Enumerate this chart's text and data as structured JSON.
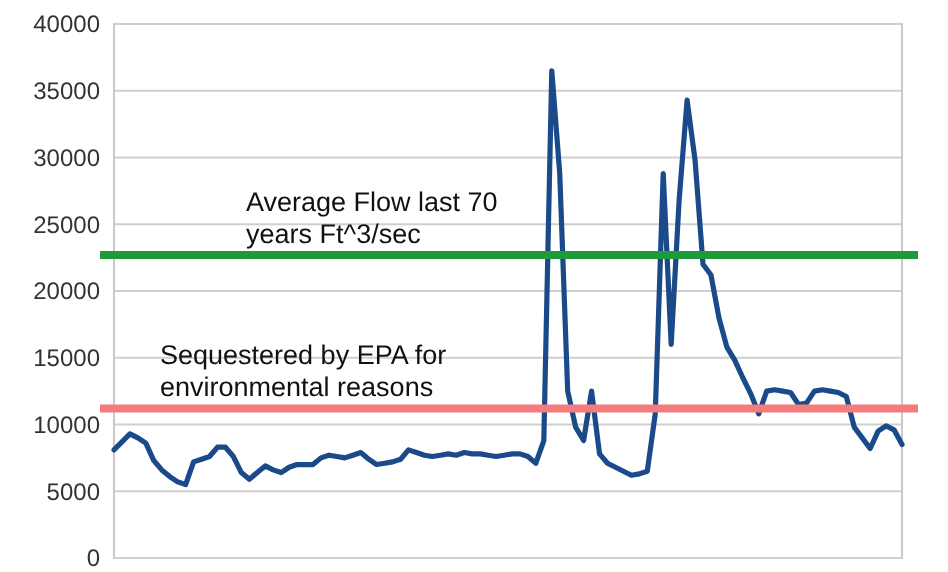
{
  "chart_data": {
    "type": "line",
    "categories": [
      null,
      null,
      null,
      null,
      null,
      null,
      null,
      null,
      null,
      null,
      null,
      null,
      null,
      null,
      null,
      null,
      null,
      null,
      null,
      null,
      null,
      null,
      null,
      null,
      null,
      null,
      null,
      null,
      null,
      null,
      null,
      null,
      null,
      null,
      null,
      null,
      null,
      null,
      null,
      null,
      null,
      null,
      null,
      null,
      null,
      null,
      null,
      null,
      null,
      null,
      null,
      null,
      null,
      null,
      null,
      null,
      null,
      null,
      null,
      null,
      null,
      null,
      null,
      null,
      null,
      null,
      null,
      null,
      null,
      null,
      null,
      null,
      null,
      null,
      null,
      null,
      null,
      null,
      null,
      null,
      null,
      null,
      null,
      null,
      null,
      null,
      null,
      null,
      null,
      null,
      null,
      null,
      null,
      null,
      null,
      null,
      null,
      null,
      null,
      null
    ],
    "series": [
      {
        "color": "#1b4a8a",
        "values": [
          8100,
          8700,
          9300,
          9000,
          8600,
          7300,
          6600,
          6100,
          5700,
          5500,
          7200,
          7400,
          7600,
          8300,
          8300,
          7600,
          6400,
          5900,
          6400,
          6900,
          6600,
          6400,
          6800,
          7000,
          7000,
          7000,
          7500,
          7700,
          7600,
          7500,
          7700,
          7900,
          7400,
          7000,
          7100,
          7200,
          7400,
          8100,
          7900,
          7700,
          7600,
          7700,
          7800,
          7700,
          7900,
          7800,
          7800,
          7700,
          7600,
          7700,
          7800,
          7800,
          7600,
          7100,
          8800,
          36500,
          28800,
          12500,
          9800,
          8800,
          12500,
          7800,
          7100,
          6800,
          6500,
          6200,
          6300,
          6500,
          10800,
          28800,
          16000,
          26800,
          34300,
          29800,
          22000,
          21200,
          18000,
          15800,
          14800,
          13500,
          12300,
          10800,
          12500,
          12600,
          12500,
          12400,
          11500,
          11600,
          12500,
          12600,
          12500,
          12400,
          12100,
          9800,
          9000,
          8200,
          9500,
          9900,
          9600,
          8500
        ]
      }
    ],
    "ylim": [
      0,
      40000
    ],
    "yticks": [
      0,
      5000,
      10000,
      15000,
      20000,
      25000,
      30000,
      35000,
      40000
    ],
    "grid": "y",
    "tick_labels": "y",
    "marker": "none",
    "line_style": "solid",
    "ref_lines": [
      {
        "axis": "y",
        "value": 22700,
        "label": "Average Flow last 70 years Ft^3/sec",
        "color": "#1e9a3a"
      },
      {
        "axis": "y",
        "value": 11200,
        "label": "Sequestered by EPA for environmental reasons",
        "color": "#f47c7c"
      }
    ]
  }
}
